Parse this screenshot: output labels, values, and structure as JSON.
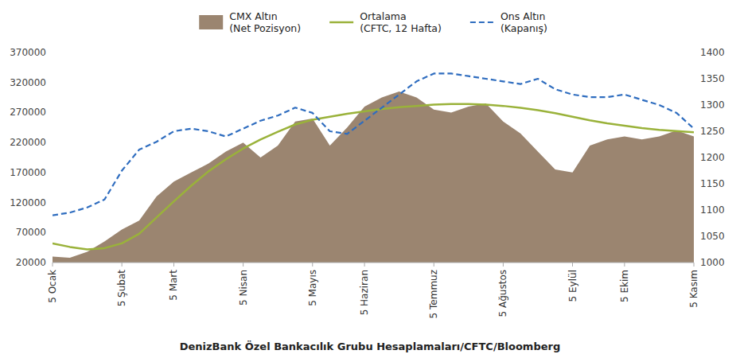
{
  "chart_data": {
    "type": "line",
    "x_label": "DenizBank Özel Bankacılık Grubu Hesaplamaları/CFTC/Bloomberg",
    "categories": [
      "5 Ocak",
      null,
      null,
      null,
      "5 Şubat",
      null,
      null,
      "5 Mart",
      null,
      null,
      null,
      "5 Nisan",
      null,
      null,
      null,
      "5 Mayıs",
      null,
      null,
      "5 Haziran",
      null,
      null,
      null,
      "5 Temmuz",
      null,
      null,
      null,
      "5 Ağustos",
      null,
      null,
      null,
      "5 Eylül",
      null,
      null,
      "5 Ekim",
      null,
      null,
      null,
      "5 Kasım"
    ],
    "series": [
      {
        "name": "CMX Altın\n(Net Pozisyon)",
        "type": "area",
        "color": "#9b8570",
        "values": [
          30000,
          28000,
          38000,
          55000,
          75000,
          90000,
          130000,
          155000,
          170000,
          185000,
          205000,
          220000,
          195000,
          215000,
          255000,
          260000,
          215000,
          245000,
          280000,
          295000,
          305000,
          295000,
          275000,
          270000,
          280000,
          285000,
          255000,
          235000,
          205000,
          175000,
          170000,
          215000,
          225000,
          230000,
          225000,
          230000,
          240000,
          230000
        ]
      },
      {
        "name": "Ortalama\n(CFTC, 12 Hafta)",
        "type": "line",
        "color": "#9ab23a",
        "line_style": "solid",
        "values": [
          52000,
          46000,
          42000,
          44000,
          52000,
          68000,
          95000,
          122000,
          148000,
          172000,
          192000,
          210000,
          225000,
          238000,
          250000,
          258000,
          263000,
          268000,
          272000,
          276000,
          279000,
          281000,
          283000,
          284000,
          284000,
          283000,
          281000,
          278000,
          274000,
          269000,
          263000,
          257000,
          252000,
          248000,
          244000,
          241000,
          239000,
          237000
        ]
      },
      {
        "name": "Ons Altın\n(Kapanış)",
        "type": "line",
        "color": "#2f6dbf",
        "line_style": "dashed",
        "axis": "y2",
        "values": [
          1090,
          1095,
          1105,
          1120,
          1175,
          1215,
          1230,
          1250,
          1255,
          1250,
          1240,
          1255,
          1270,
          1280,
          1295,
          1285,
          1250,
          1245,
          1270,
          1295,
          1320,
          1345,
          1360,
          1360,
          1355,
          1350,
          1345,
          1340,
          1350,
          1330,
          1320,
          1315,
          1315,
          1320,
          1310,
          1300,
          1285,
          1255
        ]
      }
    ],
    "ylim": [
      20000,
      370000
    ],
    "yticks": [
      20000,
      70000,
      120000,
      170000,
      220000,
      270000,
      320000,
      370000
    ],
    "y2lim": [
      1000,
      1400
    ],
    "y2ticks": [
      1000,
      1050,
      1100,
      1150,
      1200,
      1250,
      1300,
      1350,
      1400
    ],
    "grid": false,
    "legend": "top"
  }
}
